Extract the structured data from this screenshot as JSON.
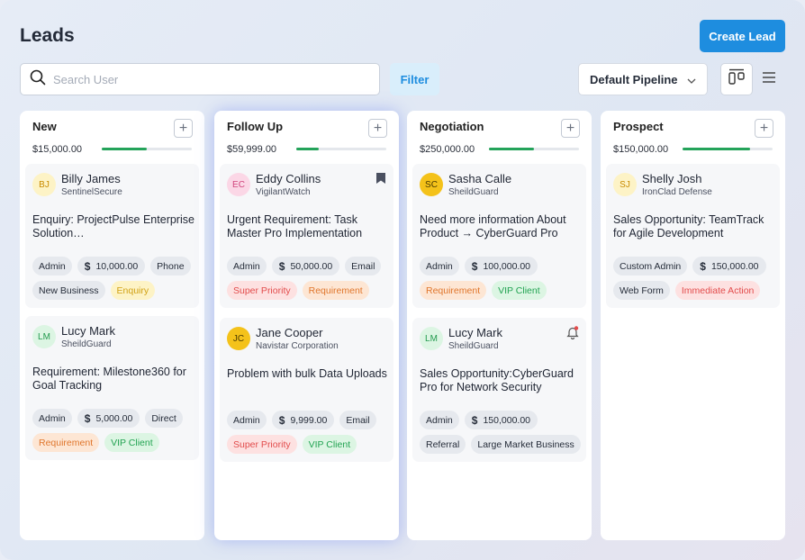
{
  "page": {
    "title": "Leads",
    "create_label": "Create Lead"
  },
  "toolbar": {
    "search_placeholder": "Search User",
    "filter_label": "Filter",
    "pipeline_value": "Default Pipeline"
  },
  "colors": {
    "accent": "#1e8ddf",
    "progress": "#24a35a",
    "avatar_yellow": "#f4c21a",
    "avatar_pink": "#fbd7e6",
    "avatar_lightyellow": "#fdf3c6",
    "avatar_green": "#dcf5e3"
  },
  "columns": [
    {
      "title": "New",
      "amount": "$15,000.00",
      "progress": 0.5,
      "cards": [
        {
          "initials": "BJ",
          "name": "Billy James",
          "company": "SentinelSecure",
          "title": "Enquiry: ProjectPulse Enterprise Solution…",
          "tags": [
            "Admin",
            "10,000.00",
            "Phone",
            "New Business",
            "Enquiry"
          ]
        },
        {
          "initials": "LM",
          "name": "Lucy Mark",
          "company": "SheildGuard",
          "title": "Requirement: Milestone360 for Goal Tracking",
          "tags": [
            "Admin",
            "5,000.00",
            "Direct",
            "Requirement",
            "VIP Client"
          ]
        }
      ]
    },
    {
      "title": "Follow Up",
      "amount": "$59,999.00",
      "progress": 0.25,
      "cards": [
        {
          "initials": "EC",
          "name": "Eddy Collins",
          "company": "VigilantWatch",
          "title": "Urgent Requirement: Task Master Pro Implementation",
          "tags": [
            "Admin",
            "50,000.00",
            "Email",
            "Super Priority",
            "Requirement"
          ]
        },
        {
          "initials": "JC",
          "name": "Jane Cooper",
          "company": "Navistar Corporation",
          "title": "Problem with bulk Data Uploads",
          "tags": [
            "Admin",
            "9,999.00",
            "Email",
            "Super Priority",
            "VIP Client"
          ]
        }
      ]
    },
    {
      "title": "Negotiation",
      "amount": "$250,000.00",
      "progress": 0.5,
      "cards": [
        {
          "initials": "SC",
          "name": "Sasha Calle",
          "company": "SheildGuard",
          "title": "Need more information About Product → CyberGuard Pro",
          "tags": [
            "Admin",
            "100,000.00",
            "Requirement",
            "VIP Client"
          ]
        },
        {
          "initials": "LM",
          "name": "Lucy Mark",
          "company": "SheildGuard",
          "title": "Sales Opportunity:CyberGuard Pro for Network Security",
          "tags": [
            "Admin",
            "150,000.00",
            "Referral",
            "Large Market Business"
          ]
        }
      ]
    },
    {
      "title": "Prospect",
      "amount": "$150,000.00",
      "progress": 0.75,
      "cards": [
        {
          "initials": "SJ",
          "name": "Shelly Josh",
          "company": "IronClad Defense",
          "title": "Sales Opportunity: TeamTrack for Agile Development",
          "tags": [
            "Custom Admin",
            "150,000.00",
            "Web Form",
            "Immediate Action"
          ]
        }
      ]
    }
  ]
}
